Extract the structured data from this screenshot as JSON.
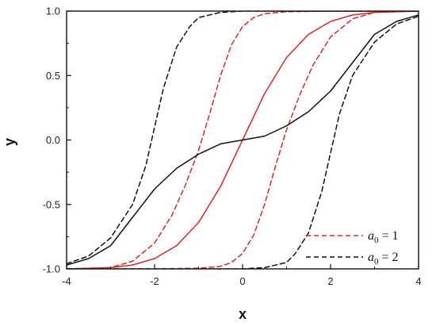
{
  "chart_data": {
    "type": "line",
    "xlabel": "x",
    "ylabel": "y",
    "xlim": [
      -4,
      4
    ],
    "ylim": [
      -1.0,
      1.0
    ],
    "x_ticks": [
      -4,
      -2,
      0,
      2,
      4
    ],
    "x_tick_labels": [
      "-4",
      "-2",
      "0",
      "2",
      "4"
    ],
    "y_ticks": [
      -1.0,
      -0.5,
      0.0,
      0.5,
      1.0
    ],
    "y_tick_labels": [
      "-1.0",
      "-0.5",
      "0.0",
      "0.5",
      "1.0"
    ],
    "grid": false,
    "legend_position": "bottom-right",
    "legend": [
      {
        "symbol": "a",
        "subscript": "0",
        "value_text": " = 1",
        "color": "#e02424",
        "dash": "dashed"
      },
      {
        "symbol": "a",
        "subscript": "0",
        "value_text": " = 2",
        "color": "#111111",
        "dash": "dashed"
      }
    ],
    "series": [
      {
        "color": "#e02424",
        "dash": "dashed",
        "points": [
          [
            -4,
            -1.0
          ],
          [
            -3,
            -0.99
          ],
          [
            -2.5,
            -0.94
          ],
          [
            -2,
            -0.8
          ],
          [
            -1.6,
            -0.58
          ],
          [
            -1.3,
            -0.35
          ],
          [
            -1.0,
            -0.08
          ],
          [
            -0.75,
            0.2
          ],
          [
            -0.5,
            0.5
          ],
          [
            -0.25,
            0.74
          ],
          [
            0,
            0.88
          ],
          [
            0.25,
            0.95
          ],
          [
            0.5,
            0.98
          ],
          [
            1,
            0.995
          ],
          [
            2,
            1.0
          ],
          [
            4,
            1.0
          ]
        ]
      },
      {
        "color": "#e02424",
        "dash": "dashed",
        "points": [
          [
            -4,
            -1.0
          ],
          [
            -2,
            -1.0
          ],
          [
            -1,
            -0.995
          ],
          [
            -0.5,
            -0.98
          ],
          [
            -0.25,
            -0.95
          ],
          [
            0,
            -0.88
          ],
          [
            0.25,
            -0.74
          ],
          [
            0.5,
            -0.5
          ],
          [
            0.75,
            -0.2
          ],
          [
            1.0,
            0.08
          ],
          [
            1.3,
            0.35
          ],
          [
            1.6,
            0.58
          ],
          [
            2,
            0.8
          ],
          [
            2.5,
            0.94
          ],
          [
            3,
            0.99
          ],
          [
            4,
            1.0
          ]
        ]
      },
      {
        "color": "#e02424",
        "dash": "solid",
        "points": [
          [
            -4,
            -1.0
          ],
          [
            -3,
            -0.99
          ],
          [
            -2.5,
            -0.97
          ],
          [
            -2,
            -0.92
          ],
          [
            -1.5,
            -0.82
          ],
          [
            -1,
            -0.64
          ],
          [
            -0.5,
            -0.36
          ],
          [
            0,
            0.0
          ],
          [
            0.5,
            0.36
          ],
          [
            1,
            0.64
          ],
          [
            1.5,
            0.82
          ],
          [
            2,
            0.92
          ],
          [
            2.5,
            0.97
          ],
          [
            3,
            0.99
          ],
          [
            4,
            1.0
          ]
        ]
      },
      {
        "color": "#111111",
        "dash": "dashed",
        "points": [
          [
            -4,
            -0.96
          ],
          [
            -3.5,
            -0.9
          ],
          [
            -3,
            -0.76
          ],
          [
            -2.5,
            -0.5
          ],
          [
            -2.2,
            -0.2
          ],
          [
            -2.0,
            0.1
          ],
          [
            -1.8,
            0.4
          ],
          [
            -1.5,
            0.72
          ],
          [
            -1.2,
            0.88
          ],
          [
            -1,
            0.95
          ],
          [
            -0.5,
            0.99
          ],
          [
            0,
            1.0
          ],
          [
            4,
            1.0
          ]
        ]
      },
      {
        "color": "#111111",
        "dash": "dashed",
        "points": [
          [
            -4,
            -1.0
          ],
          [
            0,
            -1.0
          ],
          [
            0.5,
            -0.99
          ],
          [
            1,
            -0.95
          ],
          [
            1.2,
            -0.88
          ],
          [
            1.5,
            -0.72
          ],
          [
            1.8,
            -0.4
          ],
          [
            2.0,
            -0.1
          ],
          [
            2.2,
            0.2
          ],
          [
            2.5,
            0.5
          ],
          [
            3,
            0.76
          ],
          [
            3.5,
            0.9
          ],
          [
            4,
            0.96
          ]
        ]
      },
      {
        "color": "#111111",
        "dash": "solid",
        "points": [
          [
            -4,
            -0.97
          ],
          [
            -3.5,
            -0.92
          ],
          [
            -3,
            -0.82
          ],
          [
            -2.5,
            -0.6
          ],
          [
            -2,
            -0.38
          ],
          [
            -1.5,
            -0.22
          ],
          [
            -1,
            -0.11
          ],
          [
            -0.5,
            -0.03
          ],
          [
            0,
            0.0
          ],
          [
            0.5,
            0.03
          ],
          [
            1,
            0.11
          ],
          [
            1.5,
            0.22
          ],
          [
            2,
            0.38
          ],
          [
            2.5,
            0.6
          ],
          [
            3,
            0.82
          ],
          [
            3.5,
            0.92
          ],
          [
            4,
            0.97
          ]
        ]
      }
    ]
  }
}
